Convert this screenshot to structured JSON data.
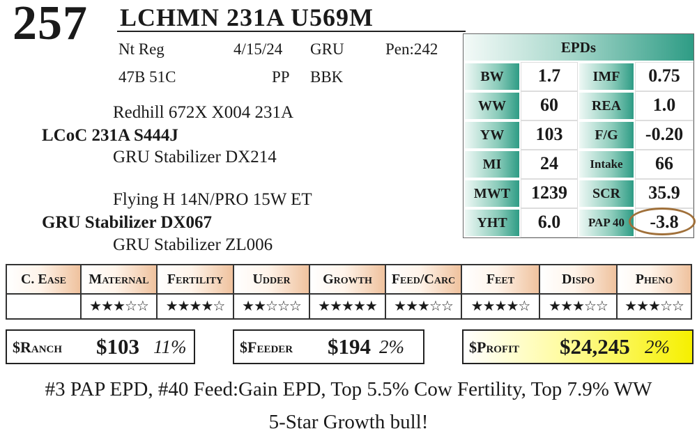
{
  "header": {
    "lot_number": "257",
    "animal_name": "LCHMN 231A U569M"
  },
  "info": {
    "registry": "Nt Reg",
    "birth_date": "4/15/24",
    "breeder_code": "GRU",
    "pen": "Pen:242",
    "tattoo": "47B 51C",
    "polled": "PP",
    "color": "BBK"
  },
  "pedigree": {
    "sire_sire": "Redhill 672X X004 231A",
    "sire": "LCoC 231A S444J",
    "sire_dam": "GRU Stabilizer DX214",
    "dam_sire": "Flying H 14N/PRO 15W ET",
    "dam": "GRU Stabilizer DX067",
    "dam_dam": "GRU Stabilizer ZL006"
  },
  "epds": {
    "title": "EPDs",
    "rows": [
      {
        "l1": "BW",
        "v1": "1.7",
        "l2": "IMF",
        "v2": "0.75"
      },
      {
        "l1": "WW",
        "v1": "60",
        "l2": "REA",
        "v2": "1.0"
      },
      {
        "l1": "YW",
        "v1": "103",
        "l2": "F/G",
        "v2": "-0.20"
      },
      {
        "l1": "MI",
        "v1": "24",
        "l2": "Intake",
        "v2": "66"
      },
      {
        "l1": "MWT",
        "v1": "1239",
        "l2": "SCR",
        "v2": "35.9"
      },
      {
        "l1": "YHT",
        "v1": "6.0",
        "l2": "PAP 40",
        "v2": "-3.8"
      }
    ]
  },
  "traits": {
    "headers": [
      "C. Ease",
      "Maternal",
      "Fertility",
      "Udder",
      "Growth",
      "Feed/Carc",
      "Feet",
      "Dispo",
      "Pheno"
    ],
    "stars": [
      "",
      "★★★☆☆",
      "★★★★☆",
      "★★☆☆☆",
      "★★★★★",
      "★★★☆☆",
      "★★★★☆",
      "★★★☆☆",
      "★★★☆☆"
    ],
    "star_counts": [
      null,
      3,
      4,
      2,
      5,
      3,
      4,
      3,
      3
    ]
  },
  "indexes": {
    "ranch": {
      "label": "$Ranch",
      "value": "$103",
      "pct": "11%"
    },
    "feeder": {
      "label": "$Feeder",
      "value": "$194",
      "pct": "2%"
    },
    "profit": {
      "label": "$Profit",
      "value": "$24,245",
      "pct": "2%"
    }
  },
  "notes": {
    "line1": "#3 PAP EPD, #40 Feed:Gain EPD, Top 5.5% Cow Fertility, Top 7.9% WW",
    "line2": "5-Star Growth bull!"
  },
  "colors": {
    "epd_accent": "#2e9c85",
    "trait_header_accent": "#efc29e",
    "profit_highlight": "#f6f000",
    "circle": "#a0703a"
  }
}
